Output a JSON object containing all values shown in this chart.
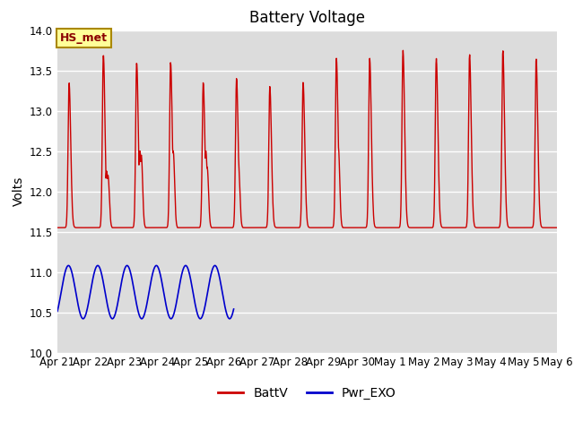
{
  "title": "Battery Voltage",
  "ylabel": "Volts",
  "ylim": [
    10.0,
    14.0
  ],
  "bg_color": "#dcdcdc",
  "fig_bg_color": "#ffffff",
  "grid_color": "#ffffff",
  "annotation_text": "HS_met",
  "annotation_bg": "#ffff99",
  "annotation_border": "#aa8800",
  "x_tick_labels": [
    "Apr 21",
    "Apr 22",
    "Apr 23",
    "Apr 24",
    "Apr 25",
    "Apr 26",
    "Apr 27",
    "Apr 28",
    "Apr 29",
    "Apr 30",
    "May 1",
    "May 2",
    "May 3",
    "May 4",
    "May 5",
    "May 6"
  ],
  "legend_labels": [
    "BattV",
    "Pwr_EXO"
  ],
  "batt_color": "#cc0000",
  "exo_color": "#0000cc",
  "title_fontsize": 12,
  "label_fontsize": 10,
  "tick_fontsize": 8.5
}
